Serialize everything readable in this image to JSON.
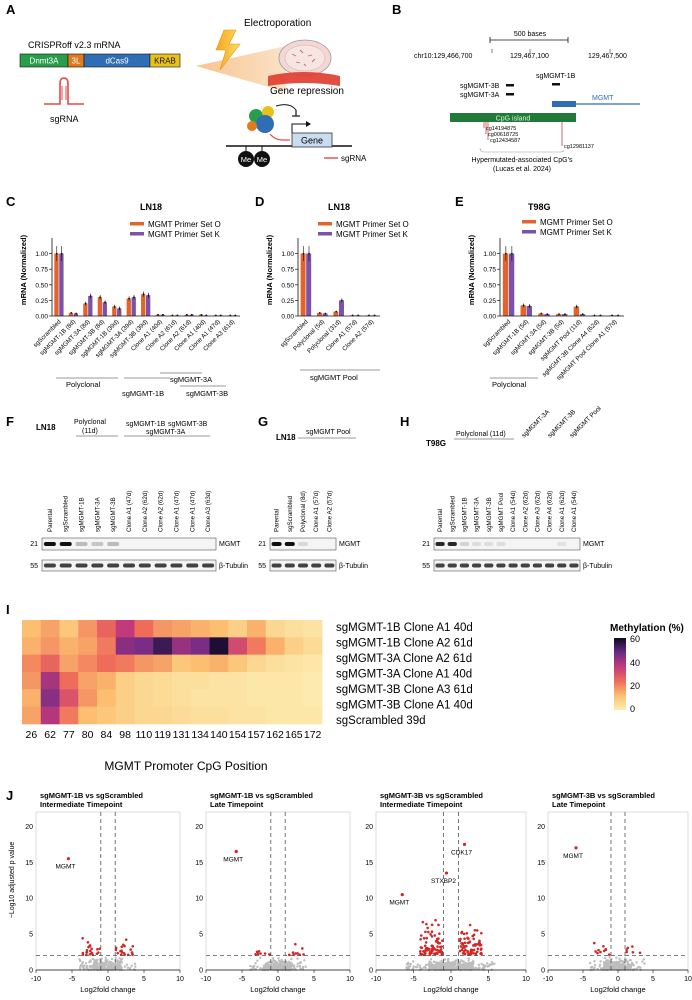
{
  "panels": {
    "A": {
      "letter": "A",
      "construct_title": "CRISPRoff v2.3 mRNA",
      "domains": [
        {
          "label": "Dnmt3A",
          "color": "#2a9d4a"
        },
        {
          "label": "3L",
          "color": "#e07a1f"
        },
        {
          "label": "dCas9",
          "color": "#2f6db5"
        },
        {
          "label": "KRAB",
          "color": "#e8c21a"
        }
      ],
      "sgrna_label": "sgRNA",
      "electroporation_label": "Electroporation",
      "repression_label": "Gene repression",
      "gene_label": "Gene",
      "me_labels": [
        "Me",
        "Me"
      ],
      "legend_sgrna": "sgRNA"
    },
    "B": {
      "letter": "B",
      "scale_label": "500 bases",
      "coords": [
        "chr10:129,466,700",
        "129,467,100",
        "129,467,500"
      ],
      "guides": [
        "sgMGMT-3B",
        "sgMGMT-3A",
        "sgMGMT-1B"
      ],
      "gene_label": "MGMT",
      "cpg_island_label": "CpG island",
      "cpg_sites": [
        "cg14194875",
        "cg00618725",
        "cg12434587",
        "cg12981137"
      ],
      "caption_line1": "Hypermutated-associated CpG's",
      "caption_line2": "(Lucas et al. 2024)"
    },
    "C": {
      "letter": "C",
      "cell_line": "LN18",
      "ylabel": "mRNA (Normalized)",
      "legend": [
        "MGMT Primer Set O",
        "MGMT Primer Set K"
      ],
      "group_labels": [
        "Polyclonal",
        "sgMGMT-1B",
        "sgMGMT-3A",
        "sgMGMT-3B"
      ]
    },
    "D": {
      "letter": "D",
      "cell_line": "LN18",
      "ylabel": "mRNA (Normalized)",
      "legend": [
        "MGMT Primer Set O",
        "MGMT Primer Set K"
      ],
      "group_labels": [
        "sgMGMT Pool"
      ]
    },
    "E": {
      "letter": "E",
      "cell_line": "T98G",
      "ylabel": "mRNA (Normalized)",
      "legend": [
        "MGMT Primer Set O",
        "MGMT Primer Set K"
      ],
      "group_labels": [
        "Polyclonal"
      ]
    },
    "F": {
      "letter": "F",
      "cell_line": "LN18",
      "group_headers": [
        "Polyclonal",
        "(11d)",
        "sgMGMT-1B",
        "sgMGMT-3B",
        "sgMGMT-3A"
      ],
      "lanes": [
        "Parental",
        "sgScrambled",
        "sgMGMT-1B",
        "sgMGMT-3A",
        "sgMGMT-3B",
        "Clone A1 (47d)",
        "Clone A2 (62d)",
        "Clone A2 (62d)",
        "Clone A1 (47d)",
        "Clone A1 (47d)",
        "Clone A3 (63d)"
      ],
      "markers": [
        "21",
        "55"
      ],
      "bands": [
        "MGMT",
        "β-Tubulin"
      ]
    },
    "G": {
      "letter": "G",
      "cell_line": "LN18",
      "group_headers": [
        "sgMGMT Pool"
      ],
      "lanes": [
        "Parental",
        "sgScrambled",
        "Polyclonal (8d)",
        "Clone A1 (57d)",
        "Clone A2 (57d)"
      ],
      "markers": [
        "21",
        "55"
      ],
      "bands": [
        "MGMT",
        "β-Tubulin"
      ]
    },
    "H": {
      "letter": "H",
      "cell_line": "T98G",
      "group_headers": [
        "Polyclonal (11d)",
        "sgMGMT-3A",
        "sgMGMT-3B",
        "sgMGMT Pool"
      ],
      "lanes": [
        "Parental",
        "sgScrambled",
        "sgMGMT-1B",
        "sgMGMT-3A",
        "sgMGMT-3B",
        "sgMGMT Pool",
        "Clone A1 (54d)",
        "Clone A2 (62d)",
        "Clone A3 (62d)",
        "Clone A4 (62d)",
        "Clone A1 (62d)",
        "Clone A1 (54d)"
      ],
      "markers": [
        "21",
        "55"
      ],
      "bands": [
        "MGMT",
        "β-Tubulin"
      ]
    },
    "I": {
      "letter": "I",
      "xlabel": "MGMT Promoter CpG Position",
      "colorbar_title": "Methylation (%)",
      "colorbar_ticks": [
        "60",
        "40",
        "20",
        "0"
      ]
    },
    "J": {
      "letter": "J",
      "ylabel": "−Log10 adjusted p value",
      "xlabel": "Log2fold change",
      "subplots": [
        {
          "title1": "sgMGMT-1B vs sgScrambled",
          "title2": "Intermediate Timepoint",
          "gene_labels": [
            "MGMT"
          ]
        },
        {
          "title1": "sgMGMT-1B vs sgScrambled",
          "title2": "Late Timepoint",
          "gene_labels": [
            "MGMT"
          ]
        },
        {
          "title1": "sgMGMT-3B vs sgScrambled",
          "title2": "Intermediate Timepoint",
          "gene_labels": [
            "CDK17",
            "STXBP2",
            "MGMT"
          ]
        },
        {
          "title1": "sgMGMT-3B vs sgScrambled",
          "title2": "Late Timepoint",
          "gene_labels": [
            "MGMT"
          ]
        }
      ]
    }
  },
  "chart_data": [
    {
      "panel": "C",
      "type": "bar",
      "title": "LN18",
      "ylabel": "mRNA (Normalized)",
      "ylim": [
        0,
        1.25
      ],
      "yticks": [
        0,
        0.25,
        0.5,
        0.75,
        1.0
      ],
      "categories": [
        "sgScrambled",
        "sgMGMT-1B (8d)",
        "sgMGMT-3A (8d)",
        "sgMGMT-3B (8d)",
        "sgMGMT-1B (39d)",
        "sgMGMT-3A (39d)",
        "sgMGMT-3B (39d)",
        "Clone A1 (40d)",
        "Clone A2 (61d)",
        "Clone A2 (61d)",
        "Clone A1 (40d)",
        "Clone A1 (47d)",
        "Clone A3 (61d)"
      ],
      "series": [
        {
          "name": "MGMT Primer Set O",
          "color": "#e2642b",
          "values": [
            1.0,
            0.05,
            0.2,
            0.3,
            0.15,
            0.28,
            0.35,
            0.02,
            0.01,
            0.02,
            0.02,
            0.01,
            0.01
          ]
        },
        {
          "name": "MGMT Primer Set K",
          "color": "#7b52a8",
          "values": [
            1.0,
            0.04,
            0.32,
            0.22,
            0.12,
            0.3,
            0.33,
            0.02,
            0.01,
            0.02,
            0.01,
            0.01,
            0.01
          ]
        }
      ]
    },
    {
      "panel": "D",
      "type": "bar",
      "title": "LN18",
      "ylabel": "mRNA (Normalized)",
      "ylim": [
        0,
        1.25
      ],
      "yticks": [
        0,
        0.25,
        0.5,
        0.75,
        1.0
      ],
      "categories": [
        "sgScrambled",
        "Polyclonal (5d)",
        "Polyclonal (31d)",
        "Clone A1 (57d)",
        "Clone A2 (57d)"
      ],
      "series": [
        {
          "name": "MGMT Primer Set O",
          "color": "#e2642b",
          "values": [
            1.0,
            0.05,
            0.07,
            0.01,
            0.01
          ]
        },
        {
          "name": "MGMT Primer Set K",
          "color": "#7b52a8",
          "values": [
            1.0,
            0.04,
            0.25,
            0.01,
            0.01
          ]
        }
      ]
    },
    {
      "panel": "E",
      "type": "bar",
      "title": "T98G",
      "ylabel": "mRNA (Normalized)",
      "ylim": [
        0,
        1.25
      ],
      "yticks": [
        0,
        0.25,
        0.5,
        0.75,
        1.0
      ],
      "categories": [
        "sgScrambled",
        "sgMGMT-1B (5d)",
        "sgMGMT-3A (5d)",
        "sgMGMT-3B (5d)",
        "sgMGMT Pool (11d)",
        "sgMGMT-3B Clone A4 (62d)",
        "sgMGMT Pool Clone A1 (57d)"
      ],
      "series": [
        {
          "name": "MGMT Primer Set O",
          "color": "#e2642b",
          "values": [
            1.0,
            0.17,
            0.04,
            0.03,
            0.15,
            0.01,
            0.01
          ]
        },
        {
          "name": "MGMT Primer Set K",
          "color": "#7b52a8",
          "values": [
            1.0,
            0.16,
            0.03,
            0.03,
            0.03,
            0.01,
            0.01
          ]
        }
      ]
    },
    {
      "panel": "I",
      "type": "heatmap",
      "xlabel": "MGMT Promoter CpG Position",
      "colorbar_title": "Methylation (%)",
      "range": [
        0,
        60
      ],
      "x": [
        "26",
        "62",
        "77",
        "80",
        "84",
        "98",
        "110",
        "119",
        "131",
        "134",
        "140",
        "154",
        "157",
        "162",
        "165",
        "172"
      ],
      "rows": [
        "sgMGMT-1B Clone A1 40d",
        "sgMGMT-1B Clone A2 61d",
        "sgMGMT-3A Clone A2 61d",
        "sgMGMT-3A Clone A1 40d",
        "sgMGMT-3B Clone A3 61d",
        "sgMGMT-3B Clone A1 40d",
        "sgScrambled 39d"
      ],
      "values": [
        [
          12,
          16,
          10,
          18,
          26,
          36,
          24,
          18,
          16,
          14,
          12,
          8,
          14,
          6,
          4,
          3
        ],
        [
          14,
          18,
          14,
          16,
          22,
          44,
          46,
          54,
          42,
          46,
          58,
          32,
          22,
          14,
          8,
          5
        ],
        [
          20,
          26,
          16,
          20,
          24,
          22,
          18,
          16,
          10,
          12,
          14,
          10,
          6,
          4,
          3,
          2
        ],
        [
          18,
          40,
          24,
          16,
          14,
          8,
          6,
          5,
          4,
          4,
          3,
          3,
          2,
          2,
          2,
          1
        ],
        [
          14,
          44,
          30,
          18,
          12,
          8,
          6,
          5,
          4,
          3,
          3,
          3,
          2,
          2,
          2,
          1
        ],
        [
          16,
          38,
          22,
          12,
          10,
          8,
          6,
          6,
          5,
          4,
          4,
          3,
          3,
          2,
          2,
          2
        ],
        [
          6,
          8,
          6,
          8,
          6,
          5,
          4,
          4,
          3,
          3,
          3,
          2,
          2,
          2,
          2,
          1
        ]
      ]
    },
    {
      "panel": "J",
      "type": "scatter",
      "xlabel": "Log2fold change",
      "ylabel": "−Log10 adjusted p value",
      "xlim": [
        -10,
        10
      ],
      "ylim": [
        0,
        22
      ],
      "xticks": [
        -10,
        -5,
        0,
        5,
        10
      ],
      "yticks": [
        0,
        5,
        10,
        15,
        20
      ],
      "thresholds": {
        "y": 2,
        "x": [
          -1,
          1
        ]
      },
      "highlighted_genes": [
        {
          "subplot": 1,
          "label": "MGMT",
          "x": -5.5,
          "y": 15.5
        },
        {
          "subplot": 2,
          "label": "MGMT",
          "x": -5.8,
          "y": 16.5
        },
        {
          "subplot": 3,
          "label": "CDK17",
          "x": 1.8,
          "y": 17.5
        },
        {
          "subplot": 3,
          "label": "STXBP2",
          "x": -0.6,
          "y": 13.5
        },
        {
          "subplot": 3,
          "label": "MGMT",
          "x": -6.5,
          "y": 10.5
        },
        {
          "subplot": 4,
          "label": "MGMT",
          "x": -6.0,
          "y": 17.0
        }
      ]
    }
  ]
}
